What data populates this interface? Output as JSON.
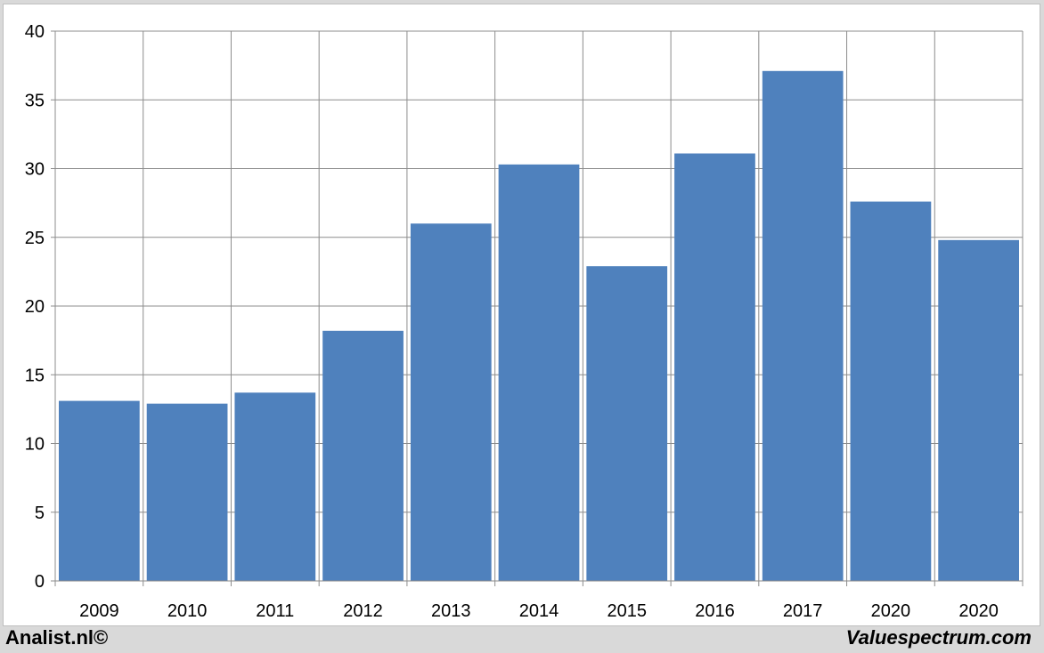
{
  "chart_data": {
    "type": "bar",
    "categories": [
      "2009",
      "2010",
      "2011",
      "2012",
      "2013",
      "2014",
      "2015",
      "2016",
      "2017",
      "2020",
      "2020"
    ],
    "values": [
      13.1,
      12.9,
      13.7,
      18.2,
      26.0,
      30.3,
      22.9,
      31.1,
      37.1,
      27.6,
      24.8
    ],
    "ylim": [
      0,
      40
    ],
    "yticks": [
      0,
      5,
      10,
      15,
      20,
      25,
      30,
      35,
      40
    ],
    "grid": true,
    "legend": "none",
    "bar_color": "#4f81bd",
    "title": "",
    "xlabel": "",
    "ylabel": ""
  },
  "footer": {
    "left_brand": "Analist.nl©",
    "right_brand": "Valuespectrum.com"
  }
}
